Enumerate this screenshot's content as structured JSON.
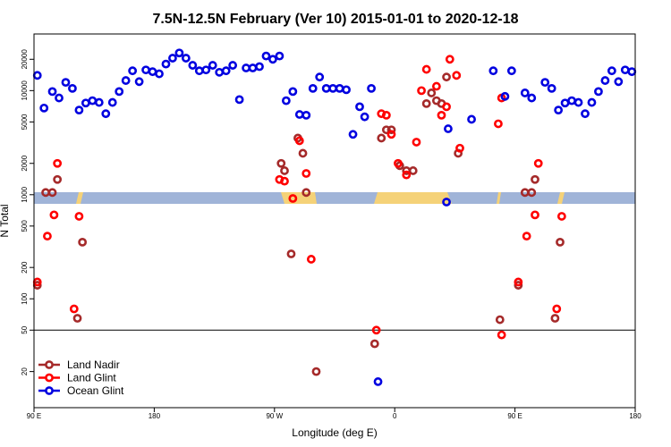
{
  "chart_data": {
    "type": "scatter",
    "title": "7.5N-12.5N February (Ver 10)   2015-01-01 to 2020-12-18",
    "xlabel": "Longitude (deg E)",
    "ylabel": "N Total",
    "x_axis": {
      "range": [
        0,
        360
      ],
      "ticks": [
        {
          "value": 0,
          "label": "90 E"
        },
        {
          "value": 72,
          "label": "180"
        },
        {
          "value": 144,
          "label": "90 W"
        },
        {
          "value": 216,
          "label": "0"
        },
        {
          "value": 288,
          "label": "90 E"
        },
        {
          "value": 360,
          "label": "180"
        }
      ]
    },
    "y_axis": {
      "scale": "log",
      "range": [
        9,
        35000
      ],
      "ticks": [
        20,
        50,
        100,
        200,
        500,
        1000,
        2000,
        5000,
        10000,
        20000
      ],
      "tick_labels": [
        "20",
        "50",
        "100",
        "200",
        "500",
        "1000",
        "2000",
        "5000",
        "10000",
        "20000"
      ]
    },
    "reference_line": 50,
    "colors": {
      "land_nadir": "#a52a2a",
      "land_glint": "#ff0000",
      "ocean_glint": "#0000e0",
      "ocean_band": "#a0b4d8",
      "land_band": "#f5d278"
    },
    "series": [
      {
        "name": "Land Nadir",
        "points": [
          [
            2,
            135
          ],
          [
            7,
            1050
          ],
          [
            11,
            1050
          ],
          [
            14,
            1400
          ],
          [
            26,
            65
          ],
          [
            29,
            350
          ],
          [
            148,
            2000
          ],
          [
            150,
            1700
          ],
          [
            154,
            270
          ],
          [
            158,
            3500
          ],
          [
            161,
            2500
          ],
          [
            163,
            1050
          ],
          [
            169,
            20
          ],
          [
            204,
            37
          ],
          [
            208,
            3500
          ],
          [
            211,
            4200
          ],
          [
            214,
            4200
          ],
          [
            219,
            1900
          ],
          [
            223,
            1700
          ],
          [
            227,
            1700
          ],
          [
            235,
            7500
          ],
          [
            238,
            9500
          ],
          [
            241,
            8000
          ],
          [
            244,
            7500
          ],
          [
            247,
            13500
          ],
          [
            254,
            2500
          ],
          [
            279,
            63
          ],
          [
            290,
            135
          ],
          [
            294,
            1050
          ],
          [
            298,
            1050
          ],
          [
            300,
            1400
          ],
          [
            312,
            65
          ],
          [
            315,
            350
          ]
        ],
        "values_note": "points are [longitude_index_deg, N_total]"
      },
      {
        "name": "Land Glint",
        "points": [
          [
            2,
            145
          ],
          [
            8,
            400
          ],
          [
            12,
            640
          ],
          [
            14,
            2000
          ],
          [
            24,
            80
          ],
          [
            27,
            620
          ],
          [
            147,
            1400
          ],
          [
            150,
            1350
          ],
          [
            155,
            920
          ],
          [
            159,
            3300
          ],
          [
            163,
            1600
          ],
          [
            166,
            240
          ],
          [
            205,
            50
          ],
          [
            208,
            6000
          ],
          [
            211,
            5800
          ],
          [
            214,
            3800
          ],
          [
            218,
            2000
          ],
          [
            223,
            1550
          ],
          [
            229,
            3200
          ],
          [
            232,
            10000
          ],
          [
            235,
            16000
          ],
          [
            241,
            11000
          ],
          [
            244,
            5800
          ],
          [
            247,
            7000
          ],
          [
            249,
            20000
          ],
          [
            253,
            14000
          ],
          [
            255,
            2800
          ],
          [
            280,
            45
          ],
          [
            278,
            4800
          ],
          [
            280,
            8500
          ],
          [
            290,
            145
          ],
          [
            295,
            400
          ],
          [
            300,
            640
          ],
          [
            302,
            2000
          ],
          [
            313,
            80
          ],
          [
            316,
            620
          ]
        ]
      },
      {
        "name": "Ocean Glint",
        "points": [
          [
            2,
            14000
          ],
          [
            6,
            6800
          ],
          [
            11,
            9800
          ],
          [
            15,
            8500
          ],
          [
            19,
            12000
          ],
          [
            23,
            10500
          ],
          [
            27,
            6500
          ],
          [
            31,
            7600
          ],
          [
            35,
            8000
          ],
          [
            39,
            7700
          ],
          [
            43,
            6000
          ],
          [
            47,
            7700
          ],
          [
            51,
            9800
          ],
          [
            55,
            12500
          ],
          [
            59,
            15500
          ],
          [
            63,
            12200
          ],
          [
            67,
            15800
          ],
          [
            71,
            15200
          ],
          [
            75,
            14500
          ],
          [
            79,
            18000
          ],
          [
            83,
            20500
          ],
          [
            87,
            23000
          ],
          [
            91,
            20500
          ],
          [
            95,
            17500
          ],
          [
            99,
            15500
          ],
          [
            103,
            15800
          ],
          [
            107,
            17500
          ],
          [
            111,
            15000
          ],
          [
            115,
            15500
          ],
          [
            119,
            17500
          ],
          [
            123,
            8200
          ],
          [
            127,
            16500
          ],
          [
            131,
            16500
          ],
          [
            135,
            17000
          ],
          [
            139,
            21500
          ],
          [
            143,
            20000
          ],
          [
            147,
            21500
          ],
          [
            151,
            8000
          ],
          [
            155,
            9800
          ],
          [
            159,
            5900
          ],
          [
            163,
            5800
          ],
          [
            167,
            10500
          ],
          [
            171,
            13500
          ],
          [
            175,
            10500
          ],
          [
            179,
            10500
          ],
          [
            183,
            10500
          ],
          [
            187,
            10200
          ],
          [
            191,
            3800
          ],
          [
            195,
            7000
          ],
          [
            198,
            5600
          ],
          [
            202,
            10500
          ],
          [
            206,
            16
          ],
          [
            247,
            850
          ],
          [
            248,
            4300
          ],
          [
            262,
            5300
          ],
          [
            275,
            15500
          ],
          [
            282,
            8800
          ],
          [
            286,
            15500
          ],
          [
            294,
            9500
          ],
          [
            298,
            8500
          ],
          [
            306,
            12000
          ],
          [
            310,
            10500
          ],
          [
            314,
            6500
          ],
          [
            318,
            7600
          ],
          [
            322,
            8000
          ],
          [
            326,
            7700
          ],
          [
            330,
            6000
          ],
          [
            334,
            7700
          ],
          [
            338,
            9800
          ],
          [
            342,
            12500
          ],
          [
            346,
            15500
          ],
          [
            350,
            12200
          ],
          [
            354,
            15800
          ],
          [
            358,
            15200
          ]
        ]
      }
    ],
    "legend": {
      "placement": "bottom-left",
      "entries": [
        "Land Nadir",
        "Land Glint",
        "Ocean Glint"
      ]
    }
  }
}
